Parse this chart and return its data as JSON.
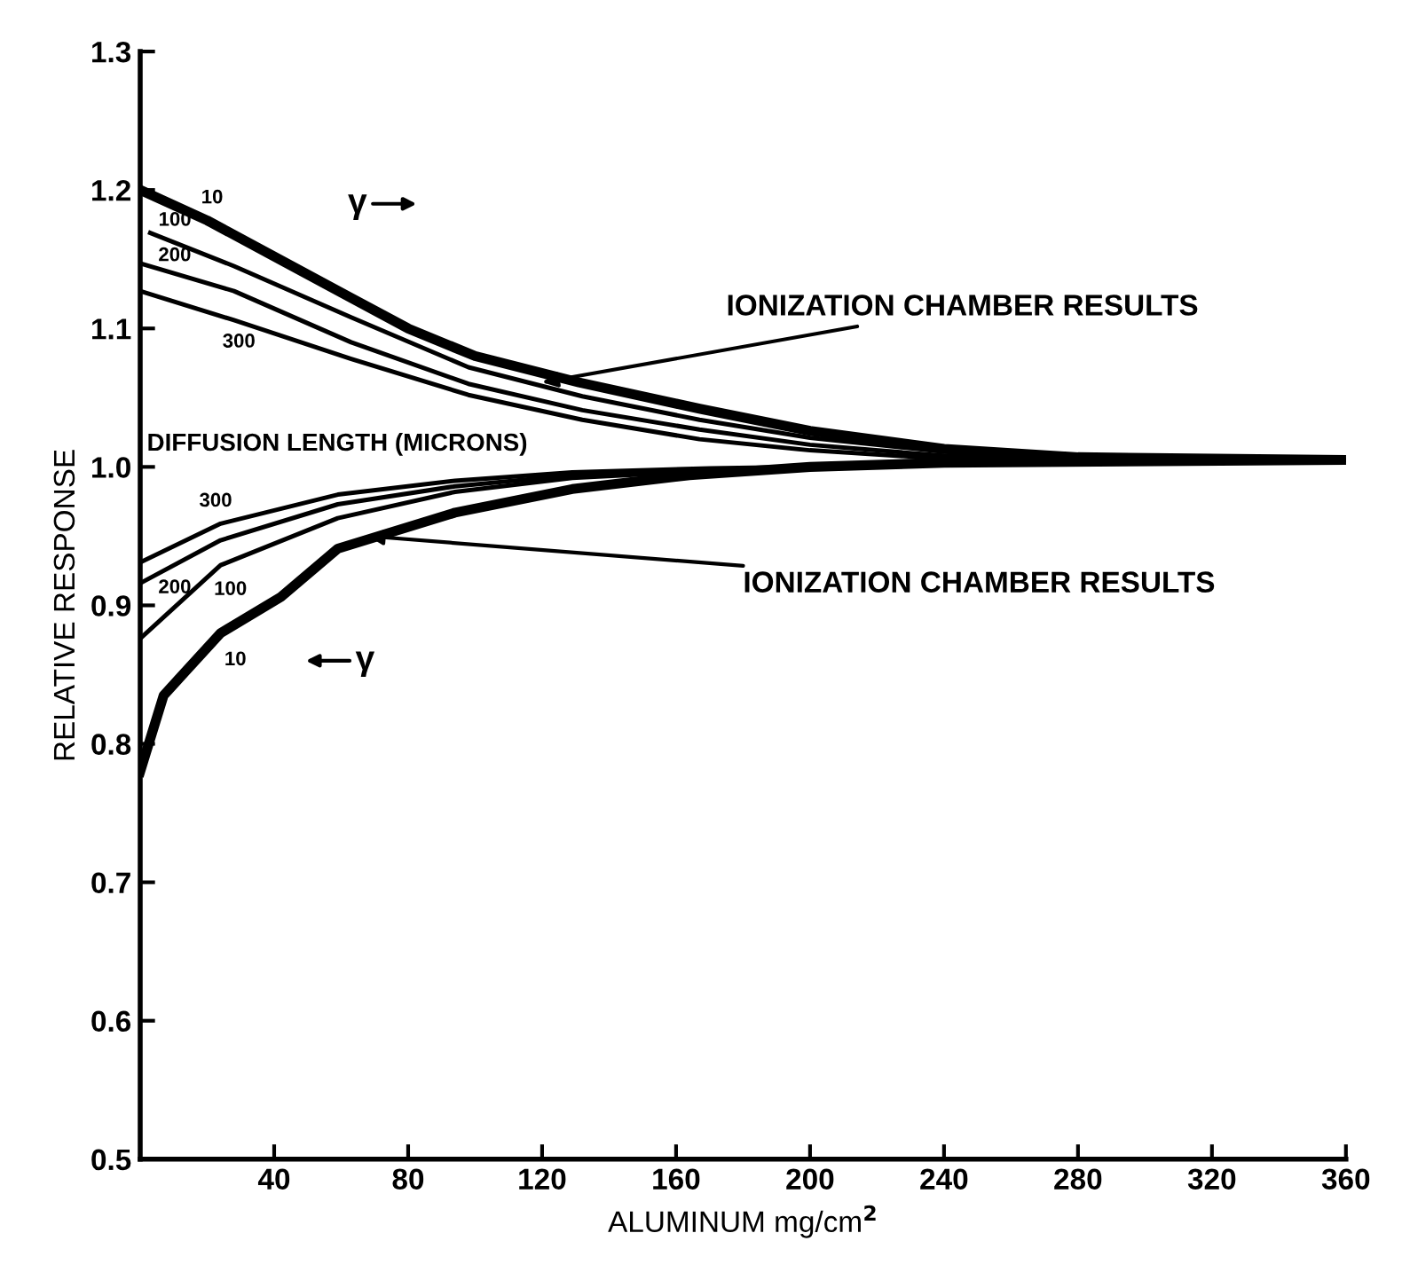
{
  "chart_data": {
    "type": "line",
    "xlabel": "ALUMINUM mg/cm$^{2}$",
    "ylabel": "RELATIVE RESPONSE",
    "xlim": [
      0,
      360
    ],
    "ylim": [
      0.5,
      1.3
    ],
    "xticks": [
      40,
      80,
      120,
      160,
      200,
      240,
      280,
      320,
      360
    ],
    "yticks": [
      0.5,
      0.6,
      0.7,
      0.8,
      0.9,
      {
        "value": 1.0,
        "label": "1.0"
      },
      1.1,
      1.2,
      1.3
    ],
    "grid": false,
    "legend": false,
    "marker": "none",
    "line_style": "solid",
    "series": [
      {
        "name": "10",
        "color": "#000000",
        "x": [
          0,
          20,
          40,
          63,
          80,
          100,
          131,
          167,
          200,
          240,
          280,
          360
        ],
        "values": [
          1.2,
          1.178,
          1.152,
          1.122,
          1.1,
          1.08,
          1.061,
          1.042,
          1.026,
          1.013,
          1.007,
          1.005
        ]
      },
      {
        "name": "100",
        "color": "#000000",
        "x": [
          3,
          28,
          63,
          98,
          132,
          167,
          200,
          240,
          280,
          360
        ],
        "values": [
          1.169,
          1.145,
          1.108,
          1.072,
          1.051,
          1.034,
          1.021,
          1.011,
          1.006,
          1.005
        ]
      },
      {
        "name": "200",
        "color": "#000000",
        "x": [
          0,
          28,
          63,
          98,
          132,
          167,
          200,
          240,
          280,
          360
        ],
        "values": [
          1.147,
          1.127,
          1.09,
          1.06,
          1.041,
          1.027,
          1.016,
          1.008,
          1.005,
          1.005
        ]
      },
      {
        "name": "300",
        "color": "#000000",
        "x": [
          0,
          28,
          63,
          98,
          132,
          167,
          200,
          240,
          280,
          360
        ],
        "values": [
          1.127,
          1.106,
          1.078,
          1.052,
          1.034,
          1.02,
          1.012,
          1.006,
          1.005,
          1.005
        ]
      },
      {
        "name": "300",
        "color": "#000000",
        "x": [
          0,
          24,
          59,
          94,
          129,
          170,
          200,
          240,
          360
        ],
        "values": [
          0.931,
          0.959,
          0.98,
          0.99,
          0.996,
          0.999,
          1.0,
          1.003,
          1.005
        ]
      },
      {
        "name": "200",
        "color": "#000000",
        "x": [
          0,
          24,
          59,
          94,
          129,
          170,
          200,
          240,
          360
        ],
        "values": [
          0.916,
          0.947,
          0.973,
          0.986,
          0.994,
          0.998,
          1.0,
          1.003,
          1.005
        ]
      },
      {
        "name": "100",
        "color": "#000000",
        "x": [
          0,
          24,
          59,
          94,
          129,
          170,
          200,
          240,
          360
        ],
        "values": [
          0.876,
          0.929,
          0.963,
          0.982,
          0.992,
          0.997,
          1.0,
          1.003,
          1.005
        ]
      },
      {
        "name": "10",
        "color": "#000000",
        "x": [
          0,
          7,
          24,
          42,
          59,
          94,
          129,
          164,
          200,
          240,
          360
        ],
        "values": [
          0.78,
          0.835,
          0.88,
          0.906,
          0.941,
          0.967,
          0.984,
          0.994,
          1.0,
          1.003,
          1.005
        ]
      }
    ],
    "annotations": [
      {
        "text": "IONIZATION CHAMBER RESULTS",
        "x": 120,
        "y": 1.061
      },
      {
        "text": "IONIZATION CHAMBER RESULTS",
        "x": 68,
        "y": 0.95
      },
      "DIFFUSION LENGTH (MICRONS)",
      "γ",
      "γ"
    ]
  }
}
